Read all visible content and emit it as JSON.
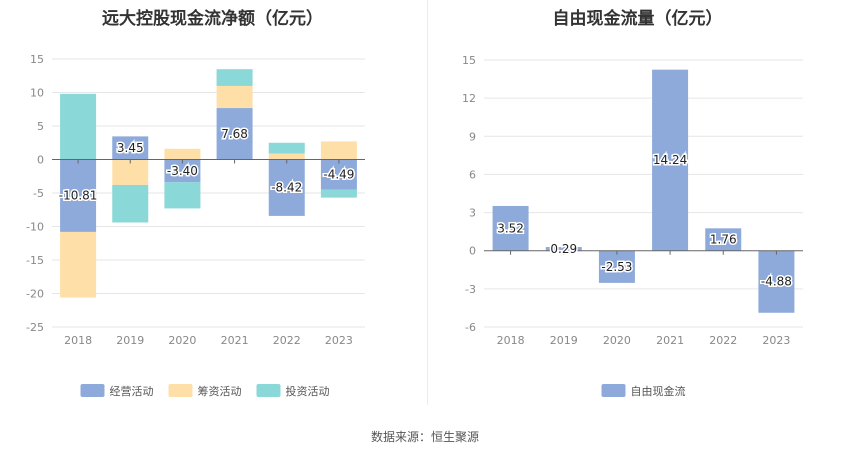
{
  "chart_data": [
    {
      "type": "bar",
      "stacked": true,
      "title": "远大控股现金流净额（亿元）",
      "categories": [
        "2018",
        "2019",
        "2020",
        "2021",
        "2022",
        "2023"
      ],
      "series": [
        {
          "name": "经营活动",
          "color": "#8eaadb",
          "values": [
            -10.81,
            3.45,
            -3.4,
            7.68,
            -8.42,
            -4.49
          ],
          "labels": [
            "-10.81",
            "3.45",
            "-3.40",
            "7.68",
            "-8.42",
            "-4.49"
          ]
        },
        {
          "name": "筹资活动",
          "color": "#ffdfa8",
          "values": [
            -9.8,
            -3.8,
            1.6,
            3.3,
            0.9,
            2.7
          ]
        },
        {
          "name": "投资活动",
          "color": "#8ad8d8",
          "values": [
            9.8,
            -5.6,
            -3.9,
            2.5,
            1.6,
            -1.2
          ]
        }
      ],
      "ylim": [
        -25,
        15
      ],
      "yticks": [
        15,
        10,
        5,
        0,
        -5,
        -10,
        -15,
        -20,
        -25
      ],
      "legend_position": "bottom",
      "grid": true
    },
    {
      "type": "bar",
      "title": "自由现金流量（亿元）",
      "categories": [
        "2018",
        "2019",
        "2020",
        "2021",
        "2022",
        "2023"
      ],
      "series": [
        {
          "name": "自由现金流",
          "color": "#8eaadb",
          "values": [
            3.52,
            0.29,
            -2.53,
            14.24,
            1.76,
            -4.88
          ],
          "labels": [
            "3.52",
            "0.29",
            "-2.53",
            "14.24",
            "1.76",
            "-4.88"
          ]
        }
      ],
      "ylim": [
        -6,
        15
      ],
      "yticks": [
        15,
        12,
        9,
        6,
        3,
        0,
        -3,
        -6
      ],
      "legend_position": "bottom",
      "grid": true
    }
  ],
  "source_text": "数据来源：恒生聚源"
}
